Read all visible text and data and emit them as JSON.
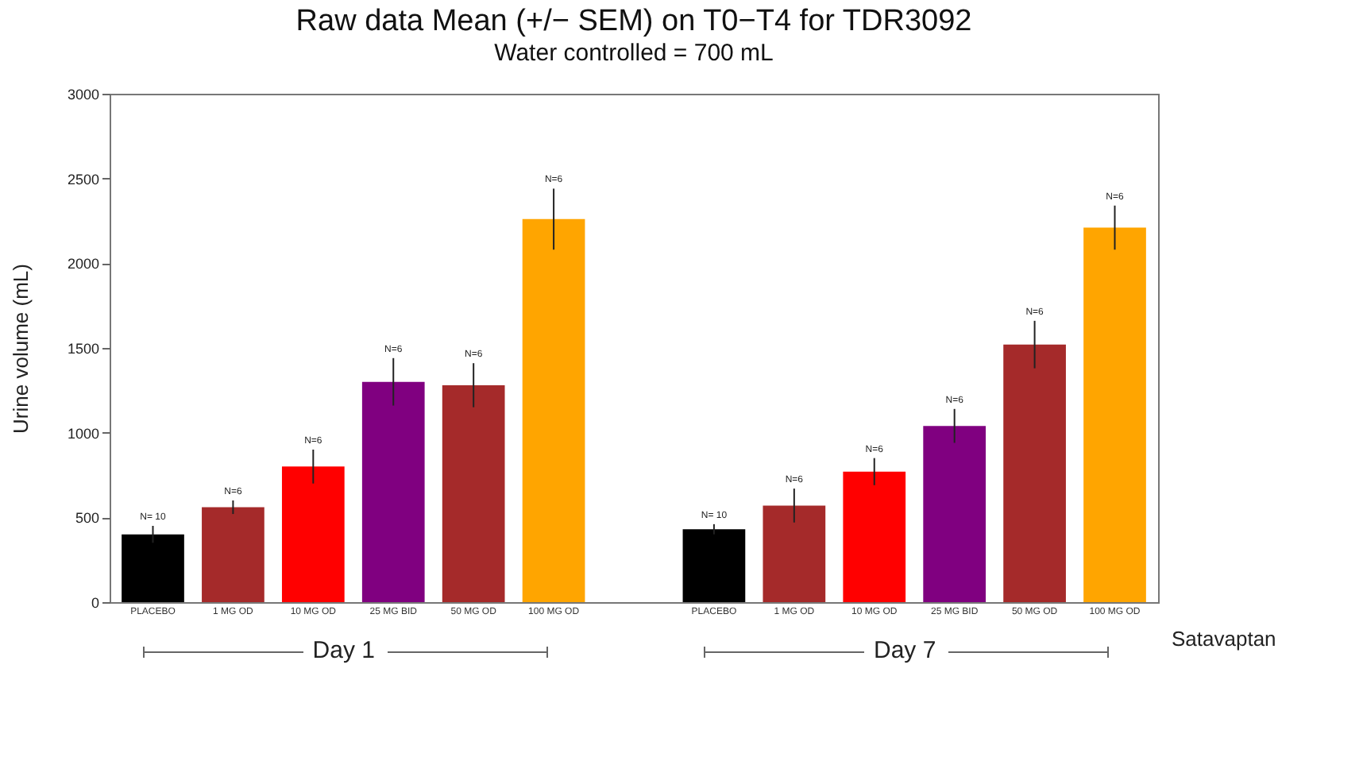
{
  "chart_data": {
    "type": "bar",
    "title": "Raw data Mean (+/− SEM) on T0−T4 for TDR3092",
    "subtitle": "Water controlled = 700 mL",
    "xlabel": "Satavaptan",
    "ylabel": "Urine volume (mL)",
    "categories": [
      "PLACEBO",
      "1 MG OD",
      "10 MG OD",
      "25 MG BID",
      "50 MG OD",
      "100 MG OD",
      "PLACEBO",
      "1 MG OD",
      "10 MG OD",
      "25 MG BID",
      "50 MG OD",
      "100 MG OD"
    ],
    "values": [
      400,
      560,
      800,
      1300,
      1280,
      2260,
      430,
      570,
      770,
      1040,
      1520,
      2210
    ],
    "errors": [
      50,
      40,
      100,
      140,
      130,
      180,
      30,
      100,
      80,
      100,
      140,
      130
    ],
    "colors": [
      "#000000",
      "#a52a2a",
      "#ff0000",
      "#800080",
      "#a52a2a",
      "#ffa500",
      "#000000",
      "#a52a2a",
      "#ff0000",
      "#800080",
      "#a52a2a",
      "#ffa500"
    ],
    "annotations": [
      "N= 10",
      "N=6",
      "N=6",
      "N=6",
      "N=6",
      "N=6",
      "N= 10",
      "N=6",
      "N=6",
      "N=6",
      "N=6",
      "N=6",
      "Day 1",
      "Day 7"
    ],
    "ylim": [
      0,
      3000
    ],
    "yticks": [
      0,
      500,
      1000,
      1500,
      2000,
      2500,
      3000
    ],
    "grid": false
  }
}
